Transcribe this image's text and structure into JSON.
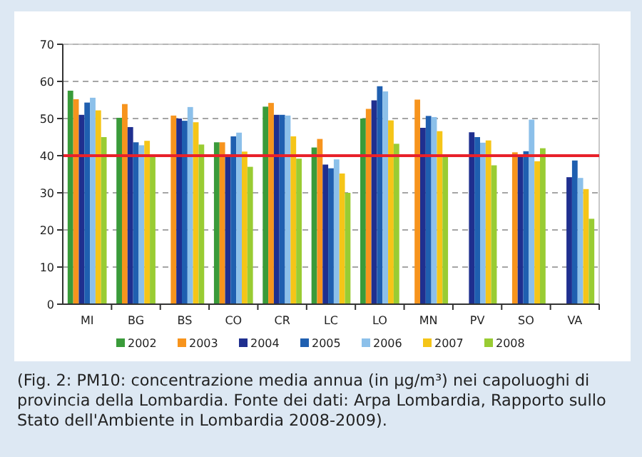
{
  "chart_data": {
    "type": "bar",
    "categories": [
      "MI",
      "BG",
      "BS",
      "CO",
      "CR",
      "LC",
      "LO",
      "MN",
      "PV",
      "SO",
      "VA"
    ],
    "series": [
      {
        "name": "2002",
        "color": "#3a9b3a",
        "values": [
          57.5,
          50.2,
          null,
          43.6,
          53.2,
          42.2,
          50,
          null,
          null,
          null,
          null
        ]
      },
      {
        "name": "2003",
        "color": "#f7941d",
        "values": [
          55.2,
          53.9,
          50.8,
          43.6,
          54.2,
          44.5,
          52.6,
          55.1,
          null,
          40.9,
          null
        ]
      },
      {
        "name": "2004",
        "color": "#1f2f8f",
        "values": [
          51,
          47.7,
          50,
          40.4,
          51,
          37.6,
          54.9,
          47.5,
          46.3,
          40,
          34.2
        ]
      },
      {
        "name": "2005",
        "color": "#1f5fb0",
        "values": [
          54.3,
          43.6,
          49.4,
          45.2,
          51,
          36.6,
          58.7,
          50.7,
          45,
          41.2,
          38.7
        ]
      },
      {
        "name": "2006",
        "color": "#8cc0ea",
        "values": [
          55.6,
          42.8,
          53.1,
          46.2,
          50.8,
          39,
          57.3,
          50.4,
          43.5,
          49.7,
          34
        ]
      },
      {
        "name": "2007",
        "color": "#f5c518",
        "values": [
          52.2,
          44,
          49,
          41.1,
          45.2,
          35.2,
          49.5,
          46.6,
          44.1,
          38.5,
          31
        ]
      },
      {
        "name": "2008",
        "color": "#99cc33",
        "values": [
          45,
          40,
          43,
          37,
          39.2,
          30,
          43.2,
          39.7,
          37.4,
          42,
          23
        ]
      }
    ],
    "ylim": [
      0,
      70
    ],
    "yticks": [
      0,
      10,
      20,
      30,
      40,
      50,
      60,
      70
    ],
    "grid": "y",
    "legend": "bottom",
    "ref_lines": [
      {
        "axis": "y",
        "value": 40,
        "color": "#e8212a"
      }
    ],
    "annotations": [
      "(Fig. 2: PM10: concentrazione media annua (in µg/m³) nei capoluoghi di provincia della Lombardia. Fonte dei dati: Arpa Lombardia, Rapporto sullo Stato dell'Ambiente in Lombardia 2008-2009)."
    ]
  }
}
